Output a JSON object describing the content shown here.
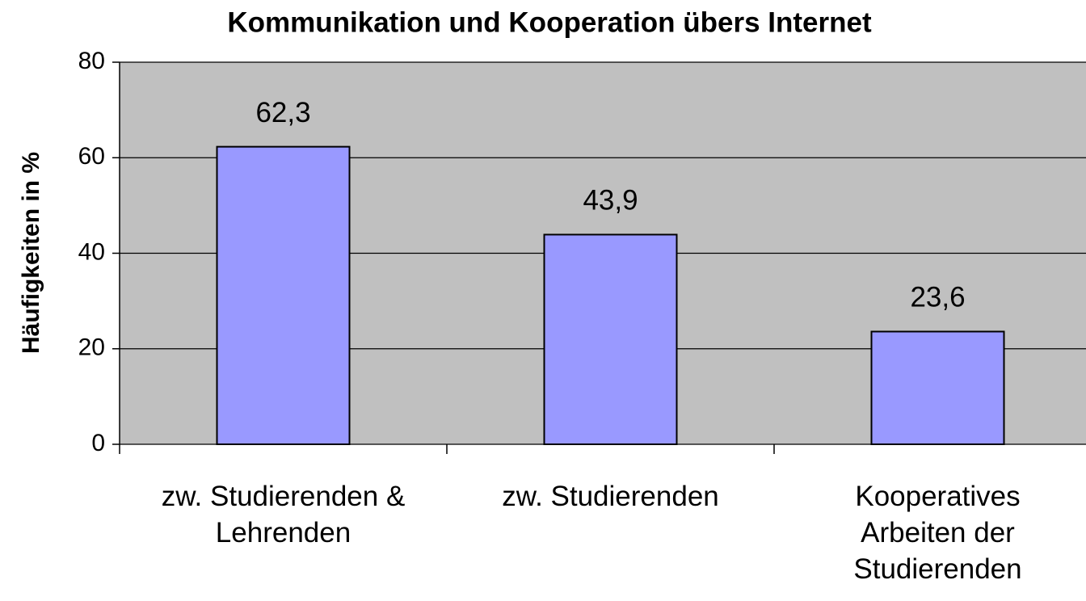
{
  "chart_data": {
    "type": "bar",
    "title": "Kommunikation und Kooperation übers Internet",
    "ylabel": "Häufigkeiten in %",
    "categories": [
      "zw. Studierenden &\nLehrenden",
      "zw. Studierenden",
      "Kooperatives\nArbeiten der\nStudierenden"
    ],
    "values": [
      62.3,
      43.9,
      23.6
    ],
    "value_labels": [
      "62,3",
      "43,9",
      "23,6"
    ],
    "color": "#9999ff",
    "background": "#c0c0c0",
    "ylim": [
      0,
      80
    ],
    "yticks": [
      0,
      20,
      40,
      60,
      80
    ],
    "grid": true
  }
}
